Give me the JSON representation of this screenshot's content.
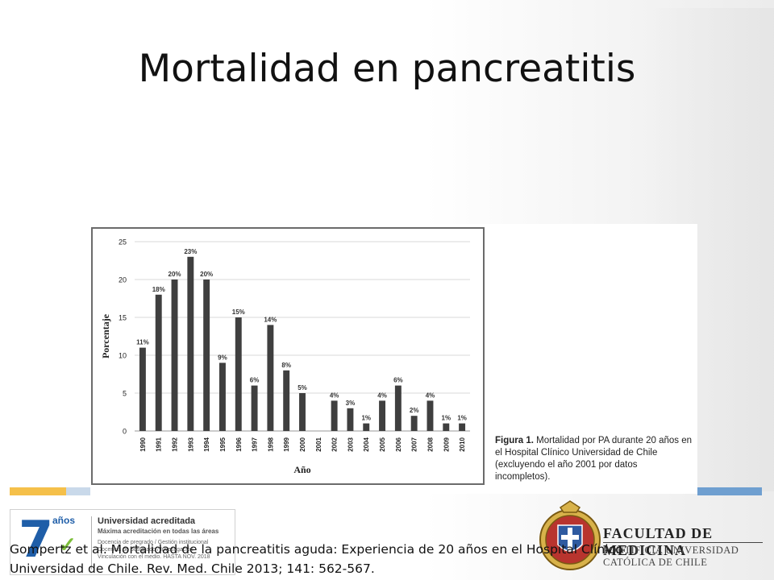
{
  "slide": {
    "title": "Mortalidad en pancreatitis",
    "reference_line1": "Gompertz et al. Mortalidad de la pancreatitis aguda: Experiencia de 20 años en el Hospital Clínico",
    "reference_line2": "Universidad de Chile. Rev. Med. Chile 2013; 141: 562-567."
  },
  "caption": {
    "label": "Figura 1.",
    "text": "Mortalidad por PA durante 20 años en el Hospital Clínico Universidad de Chile (excluyendo el año 2001 por datos incompletos)."
  },
  "accreditation": {
    "number": "7",
    "years_word": "años",
    "heading": "Universidad acreditada",
    "subheading": "Máxima acreditación en todas las áreas",
    "line1": "Docencia de pregrado / Gestión institucional",
    "line2": "Docencia de postgrado / Investigación",
    "line3": "Vinculación con el medio. HASTA NOV. 2018",
    "logo_icon": "cna-check-icon"
  },
  "faculty": {
    "name": "FACULTAD DE MEDICINA",
    "university_line1": "PONTIFICIA UNIVERSIDAD",
    "university_line2": "CATÓLICA DE CHILE",
    "crest_icon": "university-crest-icon"
  },
  "colors": {
    "bar": "#3f3f3f",
    "gridline": "#d9d9d9",
    "frame": "#6b6b6b",
    "accent_orange": "#f5c04a",
    "accent_blue": "#6f9fd0"
  },
  "chart_data": {
    "type": "bar",
    "title": "",
    "xlabel": "Año",
    "ylabel": "Porcentaje",
    "ylim": [
      0,
      25
    ],
    "yticks": [
      0,
      5,
      10,
      15,
      20,
      25
    ],
    "grid": true,
    "categories": [
      "1990",
      "1991",
      "1992",
      "1993",
      "1994",
      "1995",
      "1996",
      "1997",
      "1998",
      "1999",
      "2000",
      "2001",
      "2002",
      "2003",
      "2004",
      "2005",
      "2006",
      "2007",
      "2008",
      "2009",
      "2010"
    ],
    "values": [
      11,
      18,
      20,
      23,
      20,
      9,
      15,
      6,
      14,
      8,
      5,
      null,
      4,
      3,
      1,
      4,
      6,
      2,
      4,
      1,
      1
    ],
    "data_labels": [
      "11%",
      "18%",
      "20%",
      "23%",
      "20%",
      "9%",
      "15%",
      "6%",
      "14%",
      "8%",
      "5%",
      "",
      "4%",
      "3%",
      "1%",
      "4%",
      "6%",
      "2%",
      "4%",
      "1%",
      "1%"
    ]
  }
}
